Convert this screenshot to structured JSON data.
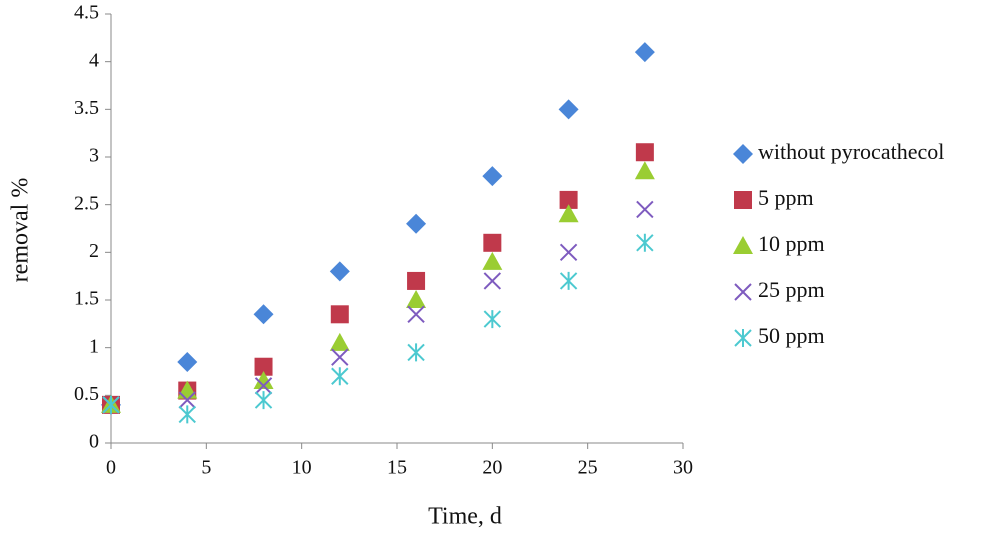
{
  "chart_data": {
    "type": "scatter",
    "x_label": "Time, d",
    "y_label": "removal %",
    "x": [
      0,
      4,
      8,
      12,
      16,
      20,
      24,
      28
    ],
    "series": [
      {
        "name": "without pyrocathecol",
        "color": "#4a86d8",
        "marker": "diamond",
        "values": [
          0.4,
          0.85,
          1.35,
          1.8,
          2.3,
          2.8,
          3.5,
          4.1
        ]
      },
      {
        "name": "5 ppm",
        "color": "#c0394b",
        "marker": "square",
        "values": [
          0.4,
          0.55,
          0.8,
          1.35,
          1.7,
          2.1,
          2.55,
          3.05
        ]
      },
      {
        "name": "10 ppm",
        "color": "#9acd32",
        "marker": "triangle",
        "values": [
          0.4,
          0.55,
          0.65,
          1.05,
          1.5,
          1.9,
          2.4,
          2.85
        ]
      },
      {
        "name": "25 ppm",
        "color": "#7e5bbf",
        "marker": "x",
        "values": [
          0.4,
          0.45,
          0.6,
          0.9,
          1.35,
          1.7,
          2.0,
          2.45
        ]
      },
      {
        "name": "50 ppm",
        "color": "#4cc9d0",
        "marker": "asterisk",
        "values": [
          0.4,
          0.3,
          0.45,
          0.7,
          0.95,
          1.3,
          1.7,
          2.1
        ]
      }
    ],
    "xlim": [
      0,
      30
    ],
    "xticks": [
      0,
      5,
      10,
      15,
      20,
      25,
      30
    ],
    "ylim": [
      0,
      4.5
    ],
    "yticks": [
      0,
      0.5,
      1,
      1.5,
      2,
      2.5,
      3,
      3.5,
      4,
      4.5
    ],
    "grid": false,
    "legend": "right"
  }
}
